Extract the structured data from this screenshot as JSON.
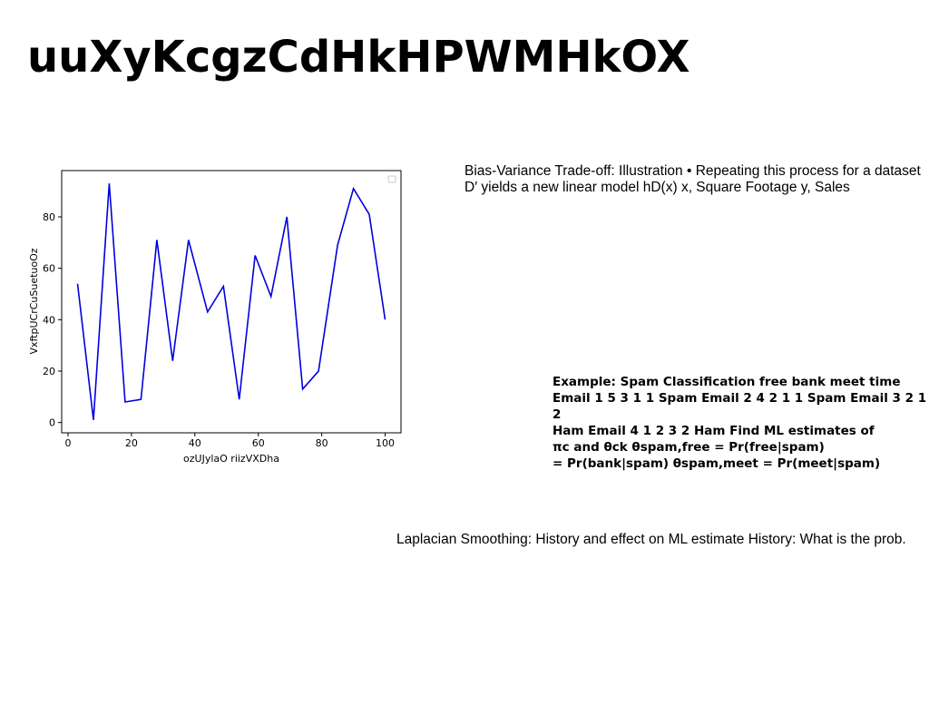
{
  "slide": {
    "title": "uuXyKcgzCdHkHPWMHkOX",
    "text_blocks": [
      "Bias-Variance Trade-off: Illustration • Repeating this process for a dataset D′ yields a new linear model hD(x) x, Square Footage y, Sales",
      "Example: Spam Classification free bank meet time\nEmail 1 5 3 1 1 Spam Email 2 4 2 1 1 Spam Email 3 2 1 2\nHam Email 4 1 2 3 2 Ham Find ML estimates of\nπc and θck θspam,free = Pr(free|spam)\n= Pr(bank|spam) θspam,meet = Pr(meet|spam)",
      "Laplacian Smoothing: History and effect on ML estimate History: What is the prob."
    ]
  },
  "chart_data": {
    "type": "line",
    "title": "",
    "xlabel": "ozUJylaO riizVXDha",
    "ylabel": "VxftpUCrCuSuetuoOz",
    "xlim": [
      -2,
      105
    ],
    "ylim": [
      -4,
      98
    ],
    "xticks": [
      0,
      20,
      40,
      60,
      80,
      100
    ],
    "yticks": [
      0,
      20,
      40,
      60,
      80
    ],
    "grid": false,
    "legend": "upper-right (empty)",
    "series": [
      {
        "color": "#0000dd",
        "x": [
          3,
          8,
          13,
          18,
          23,
          28,
          33,
          38,
          44,
          49,
          54,
          59,
          64,
          69,
          74,
          79,
          85,
          90,
          95,
          100
        ],
        "y": [
          54,
          1,
          93,
          8,
          9,
          71,
          24,
          71,
          43,
          53,
          9,
          65,
          49,
          80,
          13,
          20,
          69,
          91,
          81,
          40
        ]
      }
    ]
  }
}
